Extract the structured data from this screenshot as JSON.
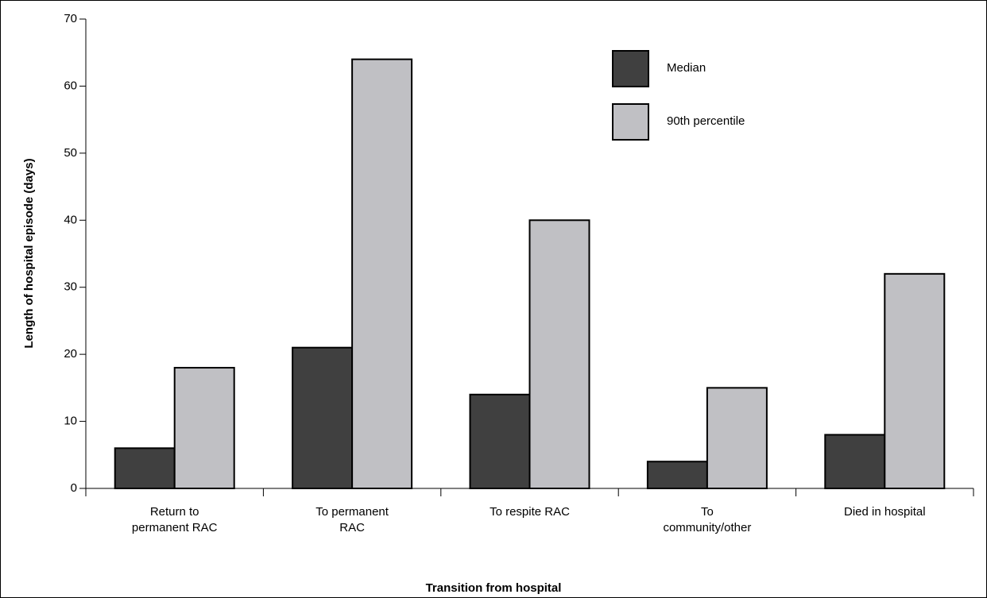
{
  "chart_data": {
    "type": "bar",
    "x_label": "Transition from hospital",
    "y_label": "Length of hospital episode (days)",
    "categories": [
      "Return to\npermanent RAC",
      "To permanent\nRAC",
      "To respite RAC",
      "To\ncommunity/other",
      "Died in hospital"
    ],
    "series": [
      {
        "name": "Median",
        "color": "#404040",
        "values": [
          6,
          21,
          14,
          4,
          8
        ]
      },
      {
        "name": "90th percentile",
        "color": "#c0c0c4",
        "values": [
          18,
          64,
          40,
          15,
          32
        ]
      }
    ],
    "ylim": [
      0,
      70
    ],
    "yticks": [
      0,
      10,
      20,
      30,
      40,
      50,
      60,
      70
    ]
  }
}
